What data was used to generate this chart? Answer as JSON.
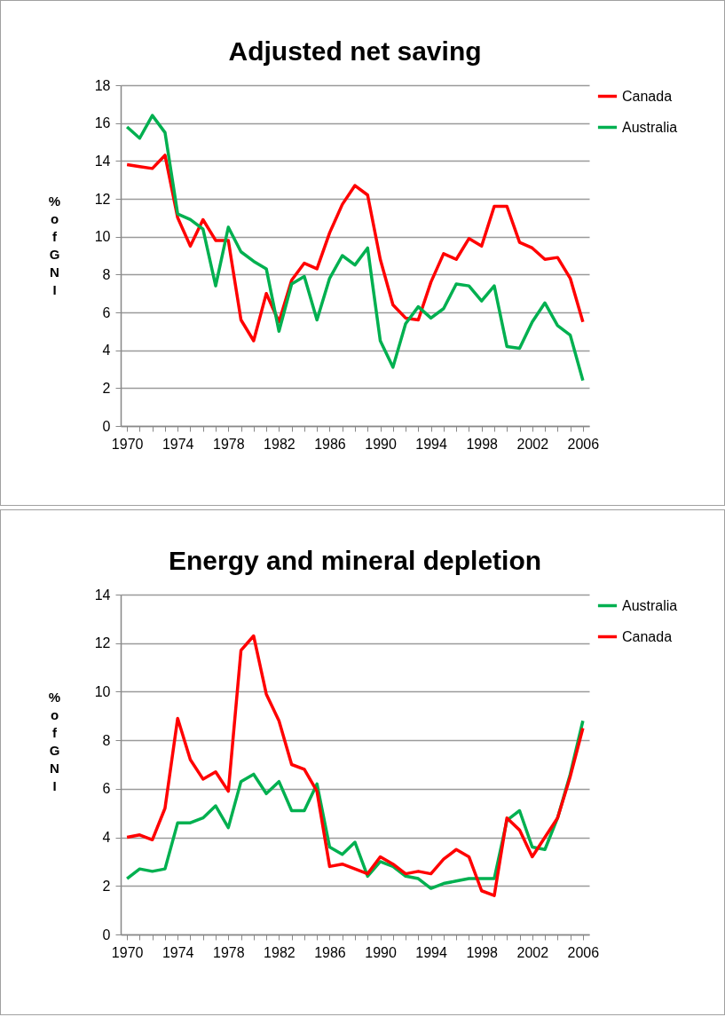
{
  "chart_data": [
    {
      "type": "line",
      "title": "Adjusted net saving",
      "ylabel": "% of GNI",
      "legend": "right",
      "grid": "y",
      "x": [
        1970,
        1971,
        1972,
        1973,
        1974,
        1975,
        1976,
        1977,
        1978,
        1979,
        1980,
        1981,
        1982,
        1983,
        1984,
        1985,
        1986,
        1987,
        1988,
        1989,
        1990,
        1991,
        1992,
        1993,
        1994,
        1995,
        1996,
        1997,
        1998,
        1999,
        2000,
        2001,
        2002,
        2003,
        2004,
        2005,
        2006
      ],
      "xlim": [
        1969.5,
        2006.5
      ],
      "xticks": [
        1970,
        {
          "value": 1971,
          "label": null
        },
        {
          "value": 1972,
          "label": null
        },
        {
          "value": 1973,
          "label": null
        },
        1974,
        {
          "value": 1975,
          "label": null
        },
        {
          "value": 1976,
          "label": null
        },
        {
          "value": 1977,
          "label": null
        },
        1978,
        {
          "value": 1979,
          "label": null
        },
        {
          "value": 1980,
          "label": null
        },
        {
          "value": 1981,
          "label": null
        },
        1982,
        {
          "value": 1983,
          "label": null
        },
        {
          "value": 1984,
          "label": null
        },
        {
          "value": 1985,
          "label": null
        },
        1986,
        {
          "value": 1987,
          "label": null
        },
        {
          "value": 1988,
          "label": null
        },
        {
          "value": 1989,
          "label": null
        },
        1990,
        {
          "value": 1991,
          "label": null
        },
        {
          "value": 1992,
          "label": null
        },
        {
          "value": 1993,
          "label": null
        },
        1994,
        {
          "value": 1995,
          "label": null
        },
        {
          "value": 1996,
          "label": null
        },
        {
          "value": 1997,
          "label": null
        },
        1998,
        {
          "value": 1999,
          "label": null
        },
        {
          "value": 2000,
          "label": null
        },
        {
          "value": 2001,
          "label": null
        },
        2002,
        {
          "value": 2003,
          "label": null
        },
        {
          "value": 2004,
          "label": null
        },
        {
          "value": 2005,
          "label": null
        },
        2006
      ],
      "ylim": [
        0,
        18
      ],
      "yticks": [
        0,
        2,
        4,
        6,
        8,
        10,
        12,
        14,
        16,
        18
      ],
      "series": [
        {
          "name": "Canada",
          "color": "#ff0000",
          "values": [
            13.8,
            13.7,
            13.6,
            14.3,
            11.0,
            9.5,
            10.9,
            9.8,
            9.8,
            5.6,
            4.5,
            7.0,
            5.5,
            7.7,
            8.6,
            8.3,
            10.2,
            11.7,
            12.7,
            12.2,
            8.8,
            6.4,
            5.7,
            5.6,
            7.6,
            9.1,
            8.8,
            9.9,
            9.5,
            11.6,
            11.6,
            9.7,
            9.4,
            8.8,
            8.9,
            7.8,
            5.5
          ]
        },
        {
          "name": "Australia",
          "color": "#00b050",
          "values": [
            15.8,
            15.2,
            16.4,
            15.5,
            11.2,
            10.9,
            10.4,
            7.4,
            10.5,
            9.2,
            8.7,
            8.3,
            5.0,
            7.5,
            7.9,
            5.6,
            7.8,
            9.0,
            8.5,
            9.4,
            4.5,
            3.1,
            5.4,
            6.3,
            5.7,
            6.2,
            7.5,
            7.4,
            6.6,
            7.4,
            4.2,
            4.1,
            5.5,
            6.5,
            5.3,
            4.8,
            2.4
          ]
        }
      ]
    },
    {
      "type": "line",
      "title": "Energy and mineral depletion",
      "ylabel": "% of GNI",
      "legend": "right",
      "grid": "y",
      "x": [
        1970,
        1971,
        1972,
        1973,
        1974,
        1975,
        1976,
        1977,
        1978,
        1979,
        1980,
        1981,
        1982,
        1983,
        1984,
        1985,
        1986,
        1987,
        1988,
        1989,
        1990,
        1991,
        1992,
        1993,
        1994,
        1995,
        1996,
        1997,
        1998,
        1999,
        2000,
        2001,
        2002,
        2003,
        2004,
        2005,
        2006
      ],
      "xlim": [
        1969.5,
        2006.5
      ],
      "xticks": [
        1970,
        {
          "value": 1971,
          "label": null
        },
        {
          "value": 1972,
          "label": null
        },
        {
          "value": 1973,
          "label": null
        },
        1974,
        {
          "value": 1975,
          "label": null
        },
        {
          "value": 1976,
          "label": null
        },
        {
          "value": 1977,
          "label": null
        },
        1978,
        {
          "value": 1979,
          "label": null
        },
        {
          "value": 1980,
          "label": null
        },
        {
          "value": 1981,
          "label": null
        },
        1982,
        {
          "value": 1983,
          "label": null
        },
        {
          "value": 1984,
          "label": null
        },
        {
          "value": 1985,
          "label": null
        },
        1986,
        {
          "value": 1987,
          "label": null
        },
        {
          "value": 1988,
          "label": null
        },
        {
          "value": 1989,
          "label": null
        },
        1990,
        {
          "value": 1991,
          "label": null
        },
        {
          "value": 1992,
          "label": null
        },
        {
          "value": 1993,
          "label": null
        },
        1994,
        {
          "value": 1995,
          "label": null
        },
        {
          "value": 1996,
          "label": null
        },
        {
          "value": 1997,
          "label": null
        },
        1998,
        {
          "value": 1999,
          "label": null
        },
        {
          "value": 2000,
          "label": null
        },
        {
          "value": 2001,
          "label": null
        },
        2002,
        {
          "value": 2003,
          "label": null
        },
        {
          "value": 2004,
          "label": null
        },
        {
          "value": 2005,
          "label": null
        },
        2006
      ],
      "ylim": [
        0,
        14
      ],
      "yticks": [
        0,
        2,
        4,
        6,
        8,
        10,
        12,
        14
      ],
      "series": [
        {
          "name": "Australia",
          "color": "#00b050",
          "values": [
            2.3,
            2.7,
            2.6,
            2.7,
            4.6,
            4.6,
            4.8,
            5.3,
            4.4,
            6.3,
            6.6,
            5.8,
            6.3,
            5.1,
            5.1,
            6.2,
            3.6,
            3.3,
            3.8,
            2.4,
            3.0,
            2.8,
            2.4,
            2.3,
            1.9,
            2.1,
            2.2,
            2.3,
            2.3,
            2.3,
            4.7,
            5.1,
            3.6,
            3.5,
            4.8,
            6.6,
            8.8
          ]
        },
        {
          "name": "Canada",
          "color": "#ff0000",
          "values": [
            4.0,
            4.1,
            3.9,
            5.2,
            8.9,
            7.2,
            6.4,
            6.7,
            5.9,
            11.7,
            12.3,
            9.9,
            8.8,
            7.0,
            6.8,
            5.9,
            2.8,
            2.9,
            2.7,
            2.5,
            3.2,
            2.9,
            2.5,
            2.6,
            2.5,
            3.1,
            3.5,
            3.2,
            1.8,
            1.6,
            4.8,
            4.3,
            3.2,
            4.0,
            4.8,
            6.5,
            8.5
          ]
        }
      ]
    }
  ]
}
